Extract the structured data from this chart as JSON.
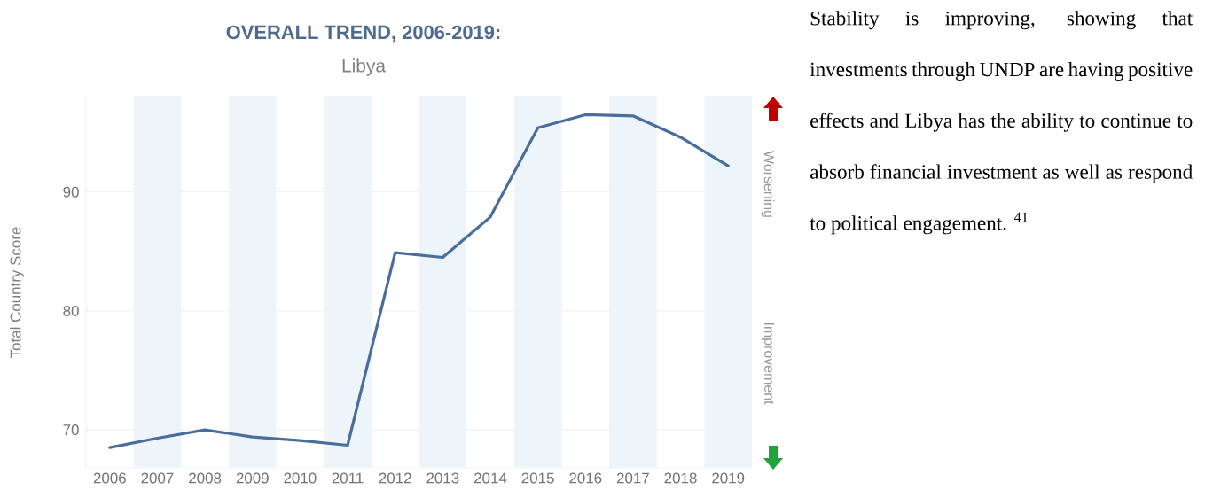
{
  "chart_data": {
    "type": "line",
    "title": "OVERALL TREND, 2006-2019:",
    "subtitle": "Libya",
    "ylabel": "Total Country Score",
    "x": [
      2006,
      2007,
      2008,
      2009,
      2010,
      2011,
      2012,
      2013,
      2014,
      2015,
      2016,
      2017,
      2018,
      2019
    ],
    "series": [
      {
        "color": "#4a6e9c",
        "values": [
          68.5,
          69.3,
          70.0,
          69.4,
          69.1,
          68.7,
          84.9,
          84.5,
          87.9,
          95.4,
          96.5,
          96.4,
          94.6,
          92.2
        ]
      }
    ],
    "xlim": [
      2005.5,
      2019.5
    ],
    "ylim": [
      66.8,
      98.1
    ],
    "xticks": [
      2006,
      2007,
      2008,
      2009,
      2010,
      2011,
      2012,
      2013,
      2014,
      2015,
      2016,
      2017,
      2018,
      2019
    ],
    "yticks": [
      70,
      80,
      90
    ],
    "grid": "y",
    "bands": [
      {
        "axis": "x",
        "from": 2006.5,
        "to": 2007.5,
        "color": "#edf4fa"
      },
      {
        "axis": "x",
        "from": 2008.5,
        "to": 2009.5,
        "color": "#edf4fa"
      },
      {
        "axis": "x",
        "from": 2010.5,
        "to": 2011.5,
        "color": "#edf4fa"
      },
      {
        "axis": "x",
        "from": 2012.5,
        "to": 2013.5,
        "color": "#edf4fa"
      },
      {
        "axis": "x",
        "from": 2014.5,
        "to": 2015.5,
        "color": "#edf4fa"
      },
      {
        "axis": "x",
        "from": 2016.5,
        "to": 2017.5,
        "color": "#edf4fa"
      },
      {
        "axis": "x",
        "from": 2018.5,
        "to": 2019.5,
        "color": "#edf4fa"
      }
    ],
    "annotations": [
      "Worsening",
      "Improvement",
      "Stability is improving, showing that investments through UNDP are having positive effects and Libya has the ability to continue to absorb financial investment as well as respond to political engagement. $^{41}$"
    ]
  }
}
